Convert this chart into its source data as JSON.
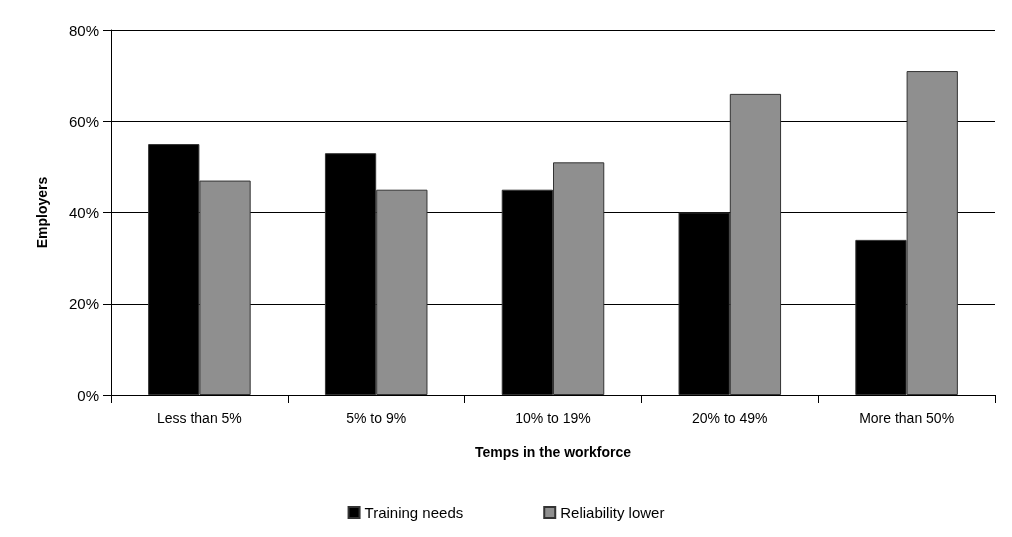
{
  "chart_data": {
    "type": "bar",
    "xlabel": "Temps in the workforce",
    "ylabel": "Employers",
    "categories": [
      "Less than 5%",
      "5% to 9%",
      "10% to 19%",
      "20% to 49%",
      "More than 50%"
    ],
    "series": [
      {
        "name": "Training needs",
        "color": "#000000",
        "values": [
          55,
          53,
          45,
          40,
          34
        ]
      },
      {
        "name": "Reliability lower",
        "color": "#8f8f8f",
        "values": [
          47,
          45,
          51,
          66,
          71
        ]
      }
    ],
    "ylim": [
      0,
      80
    ],
    "yticks": [
      {
        "value": 0,
        "label": "0%"
      },
      {
        "value": 20,
        "label": "20%"
      },
      {
        "value": 40,
        "label": "40%"
      },
      {
        "value": 60,
        "label": "60%"
      },
      {
        "value": 80,
        "label": "80%"
      }
    ],
    "grid": "y",
    "legend": "bottom"
  }
}
